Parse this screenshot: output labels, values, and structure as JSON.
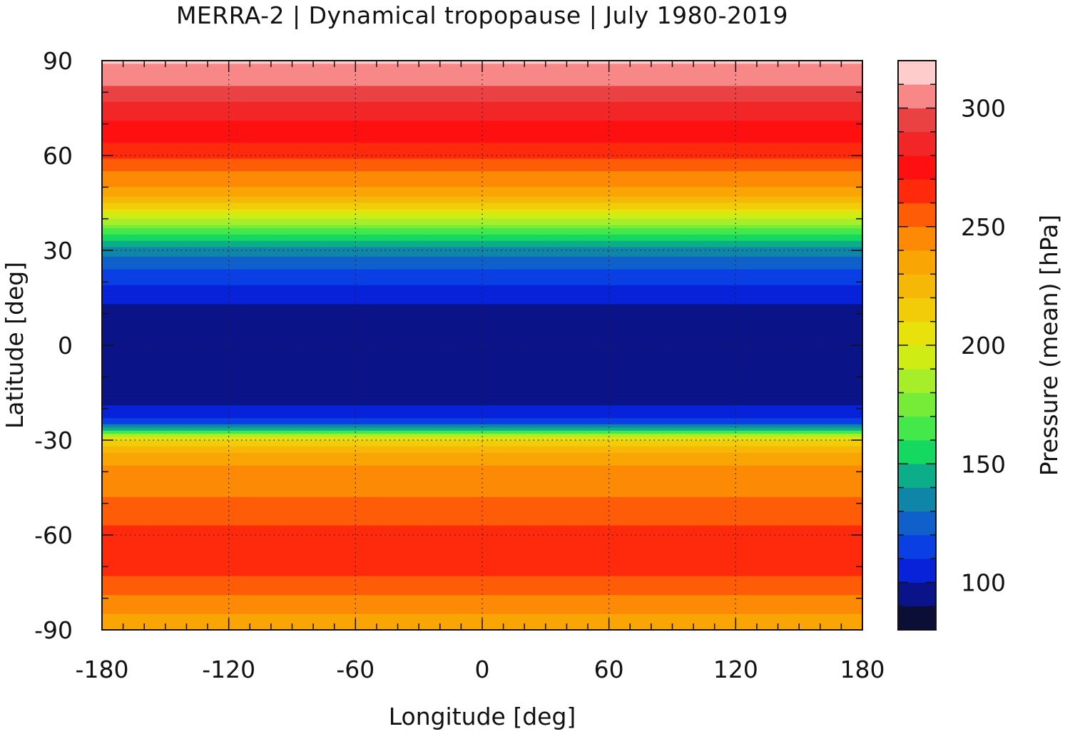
{
  "chart_data": {
    "type": "heatmap",
    "title": "MERRA-2 | Dynamical tropopause | July 1980-2019",
    "xlabel": "Longitude [deg]",
    "ylabel": "Latitude [deg]",
    "colorbar_label": "Pressure (mean) [hPa]",
    "xlim": [
      -180,
      180
    ],
    "ylim": [
      -90,
      90
    ],
    "xticks": [
      -180,
      -120,
      -60,
      0,
      60,
      120,
      180
    ],
    "yticks": [
      90,
      60,
      30,
      0,
      -30,
      -60,
      -90
    ],
    "grid": true,
    "colorbar": {
      "range": [
        80,
        320
      ],
      "step": 10,
      "ticks": [
        100,
        150,
        200,
        250,
        300
      ],
      "colors": [
        "#0b0f35",
        "#0a1388",
        "#0722d8",
        "#0a3fe4",
        "#1060cc",
        "#0f86a8",
        "#0bae88",
        "#14d860",
        "#44e84a",
        "#77ec38",
        "#a6ee2a",
        "#cfec14",
        "#e8e20c",
        "#f2cc08",
        "#f6b806",
        "#f9a504",
        "#fc8a04",
        "#ff5c08",
        "#ff2a0c",
        "#ff1010",
        "#f22626",
        "#ea4242",
        "#f88888",
        "#ffcccc"
      ]
    },
    "zonal_profile": {
      "lat": [
        -90,
        -85,
        -80,
        -75,
        -70,
        -65,
        -60,
        -55,
        -50,
        -45,
        -40,
        -35,
        -30,
        -27,
        -24,
        -21,
        -18,
        -15,
        -10,
        -5,
        0,
        5,
        10,
        15,
        20,
        25,
        30,
        35,
        40,
        45,
        50,
        55,
        60,
        65,
        70,
        75,
        80,
        85,
        90
      ],
      "pressure": [
        232,
        240,
        248,
        258,
        262,
        260,
        262,
        258,
        252,
        246,
        242,
        236,
        210,
        150,
        112,
        102,
        98,
        96,
        93,
        92,
        92,
        93,
        96,
        103,
        112,
        122,
        135,
        160,
        190,
        220,
        240,
        250,
        262,
        272,
        278,
        285,
        295,
        305,
        312
      ]
    }
  }
}
